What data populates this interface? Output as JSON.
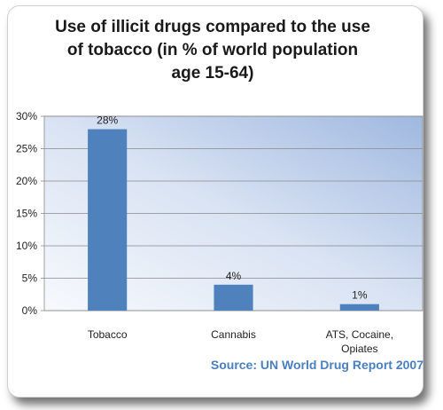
{
  "chart_data": {
    "type": "bar",
    "title": "Use of illicit drugs compared to the use\nof tobacco (in % of world population\nage 15-64)",
    "categories": [
      "Tobacco",
      "Cannabis",
      "ATS, Cocaine,\nOpiates"
    ],
    "values": [
      28,
      4,
      1
    ],
    "data_labels": [
      "28%",
      "4%",
      "1%"
    ],
    "ylim": [
      0,
      30
    ],
    "yticks": [
      "0%",
      "5%",
      "10%",
      "15%",
      "20%",
      "25%",
      "30%"
    ],
    "grid": true,
    "legend": "none",
    "bar_color": "#4f81bd"
  },
  "source": "Source: UN World Drug Report 2007"
}
